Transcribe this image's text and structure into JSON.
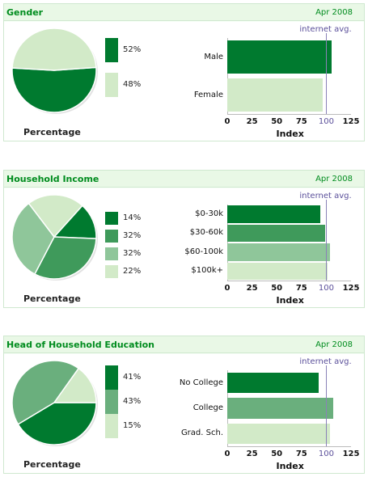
{
  "palette": {
    "dark": "#007a2f",
    "mid": "#3f9a5b",
    "light": "#8fc69a",
    "pale": "#d2eac8",
    "gender_light": "#d2eac8"
  },
  "chart_data": [
    {
      "type": "bar",
      "title": "Gender",
      "date": "Apr 2008",
      "pie_label": "Percentage",
      "bar_label": "Index",
      "avg_label": "internet avg.",
      "avg_value": 100,
      "xlim": [
        0,
        125
      ],
      "ticks": [
        "0",
        "25",
        "50",
        "75",
        "100",
        "125"
      ],
      "categories": [
        "Male",
        "Female"
      ],
      "index_values": [
        105,
        96
      ],
      "percentages": [
        52,
        48
      ],
      "percentage_labels": [
        "52%",
        "48%"
      ],
      "colors": [
        "#007a2f",
        "#d2eac8"
      ]
    },
    {
      "type": "bar",
      "title": "Household Income",
      "date": "Apr 2008",
      "pie_label": "Percentage",
      "bar_label": "Index",
      "avg_label": "internet avg.",
      "avg_value": 100,
      "xlim": [
        0,
        125
      ],
      "ticks": [
        "0",
        "25",
        "50",
        "75",
        "100",
        "125"
      ],
      "categories": [
        "$0-30k",
        "$30-60k",
        "$60-100k",
        "$100k+"
      ],
      "index_values": [
        94,
        99,
        104,
        101
      ],
      "percentages": [
        14,
        32,
        32,
        22
      ],
      "percentage_labels": [
        "14%",
        "32%",
        "32%",
        "22%"
      ],
      "colors": [
        "#007a2f",
        "#3f9a5b",
        "#8fc69a",
        "#d2eac8"
      ]
    },
    {
      "type": "bar",
      "title": "Head of Household Education",
      "date": "Apr 2008",
      "pie_label": "Percentage",
      "bar_label": "Index",
      "avg_label": "internet avg.",
      "avg_value": 100,
      "xlim": [
        0,
        125
      ],
      "ticks": [
        "0",
        "25",
        "50",
        "75",
        "100",
        "125"
      ],
      "categories": [
        "No College",
        "College",
        "Grad. Sch."
      ],
      "index_values": [
        92,
        107,
        104
      ],
      "percentages": [
        41,
        43,
        15
      ],
      "percentage_labels": [
        "41%",
        "43%",
        "15%"
      ],
      "colors": [
        "#007a2f",
        "#6aaf7d",
        "#d2eac8"
      ]
    }
  ]
}
